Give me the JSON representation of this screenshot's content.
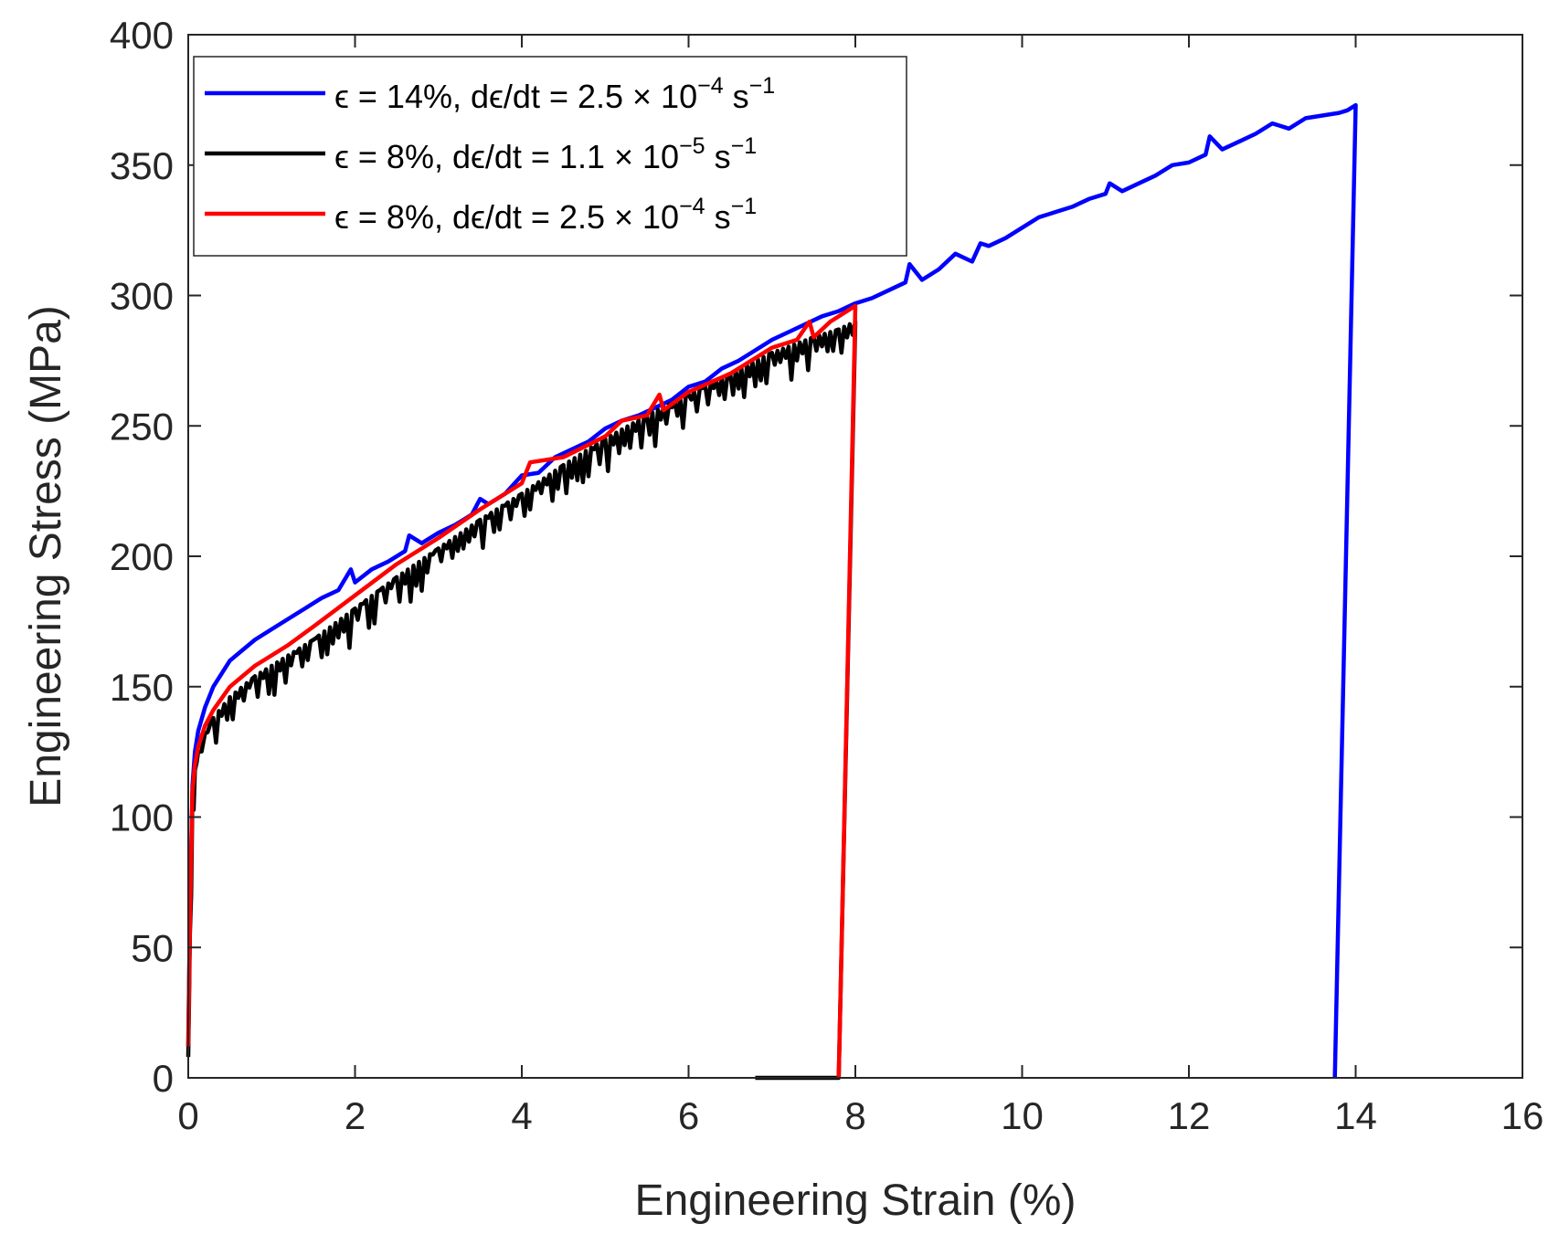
{
  "chart_data": {
    "type": "line",
    "xlabel": "Engineering Strain (%)",
    "ylabel": "Engineering Stress (MPa)",
    "xlim": [
      0,
      16
    ],
    "ylim": [
      0,
      400
    ],
    "xticks": [
      0,
      2,
      4,
      6,
      8,
      10,
      12,
      14,
      16
    ],
    "yticks": [
      0,
      50,
      100,
      150,
      200,
      250,
      300,
      350,
      400
    ],
    "x_tick_labels": [
      "0",
      "2",
      "4",
      "6",
      "8",
      "10",
      "12",
      "14",
      "16"
    ],
    "y_tick_labels": [
      "0",
      "50",
      "100",
      "150",
      "200",
      "250",
      "300",
      "350",
      "400"
    ],
    "grid": false,
    "legend_position": "top-left",
    "series": [
      {
        "name": "ε = 14%, dε/dt = 2.5 × 10−4 s−1",
        "legend": {
          "main": "ϵ = 14%, dϵ/dt = 2.5 × 10",
          "exp": "−4",
          "unit": " s",
          "unit_exp": "−1"
        },
        "color": "#0000ff",
        "noise": 0,
        "x": [
          0,
          0.02,
          0.05,
          0.08,
          0.12,
          0.2,
          0.3,
          0.5,
          0.8,
          1.0,
          1.2,
          1.4,
          1.6,
          1.8,
          1.95,
          2.0,
          2.2,
          2.4,
          2.6,
          2.65,
          2.8,
          3.0,
          3.2,
          3.4,
          3.5,
          3.6,
          3.8,
          4.0,
          4.2,
          4.4,
          4.6,
          4.8,
          5.0,
          5.2,
          5.4,
          5.6,
          5.8,
          6.0,
          6.2,
          6.4,
          6.6,
          6.8,
          7.0,
          7.2,
          7.4,
          7.6,
          7.8,
          8.0,
          8.2,
          8.4,
          8.6,
          8.65,
          8.8,
          9.0,
          9.2,
          9.4,
          9.5,
          9.6,
          9.8,
          10.0,
          10.2,
          10.4,
          10.6,
          10.8,
          11.0,
          11.05,
          11.2,
          11.4,
          11.6,
          11.8,
          12.0,
          12.2,
          12.25,
          12.4,
          12.6,
          12.8,
          13.0,
          13.2,
          13.4,
          13.6,
          13.8,
          13.9,
          14.0,
          13.75
        ],
        "y": [
          12,
          60,
          112,
          125,
          133,
          142,
          150,
          160,
          168,
          172,
          176,
          180,
          184,
          187,
          195,
          190,
          195,
          198,
          202,
          208,
          205,
          209,
          212,
          216,
          222,
          220,
          224,
          231,
          232,
          238,
          241,
          244,
          249,
          252,
          254,
          257,
          260,
          265,
          267,
          272,
          275,
          279,
          283,
          286,
          289,
          292,
          294,
          297,
          299,
          302,
          305,
          312,
          306,
          310,
          316,
          313,
          320,
          319,
          322,
          326,
          330,
          332,
          334,
          337,
          339,
          343,
          340,
          343,
          346,
          350,
          351,
          354,
          361,
          356,
          359,
          362,
          366,
          364,
          368,
          369,
          370,
          371,
          373,
          0
        ]
      },
      {
        "name": "ε = 8%, dε/dt = 1.1 × 10−5 s−1",
        "legend": {
          "main": "ϵ = 8%, dϵ/dt = 1.1 × 10",
          "exp": "−5",
          "unit": " s",
          "unit_exp": "−1"
        },
        "color": "#000000",
        "noise": 7,
        "x": [
          0,
          0.02,
          0.05,
          0.08,
          0.12,
          0.2,
          0.3,
          0.5,
          0.8,
          1.0,
          1.5,
          2.0,
          2.5,
          3.0,
          3.5,
          4.0,
          4.5,
          5.0,
          5.5,
          6.0,
          6.5,
          7.0,
          7.5,
          7.8,
          8.0,
          7.8,
          7.5,
          6.8
        ],
        "y": [
          8,
          55,
          108,
          118,
          125,
          132,
          138,
          146,
          154,
          158,
          168,
          180,
          192,
          203,
          214,
          224,
          235,
          245,
          254,
          262,
          270,
          278,
          284,
          287,
          290,
          0,
          0,
          0
        ]
      },
      {
        "name": "ε = 8%, dε/dt = 2.5 × 10−4 s−1",
        "legend": {
          "main": "ϵ = 8%, dϵ/dt = 2.5 × 10",
          "exp": "−4",
          "unit": " s",
          "unit_exp": "−1"
        },
        "color": "#ff0000",
        "noise": 0,
        "x": [
          0,
          0.02,
          0.05,
          0.08,
          0.12,
          0.2,
          0.3,
          0.5,
          0.8,
          1.0,
          1.2,
          1.5,
          2.0,
          2.5,
          3.0,
          3.5,
          4.0,
          4.1,
          4.5,
          5.0,
          5.2,
          5.5,
          5.65,
          5.7,
          6.0,
          6.5,
          7.0,
          7.3,
          7.45,
          7.5,
          7.7,
          8.0,
          7.8
        ],
        "y": [
          12,
          60,
          110,
          120,
          127,
          135,
          141,
          150,
          158,
          162,
          166,
          173,
          185,
          197,
          207,
          218,
          228,
          236,
          238,
          246,
          252,
          254,
          262,
          256,
          263,
          270,
          280,
          283,
          290,
          284,
          290,
          296,
          0
        ]
      }
    ]
  }
}
